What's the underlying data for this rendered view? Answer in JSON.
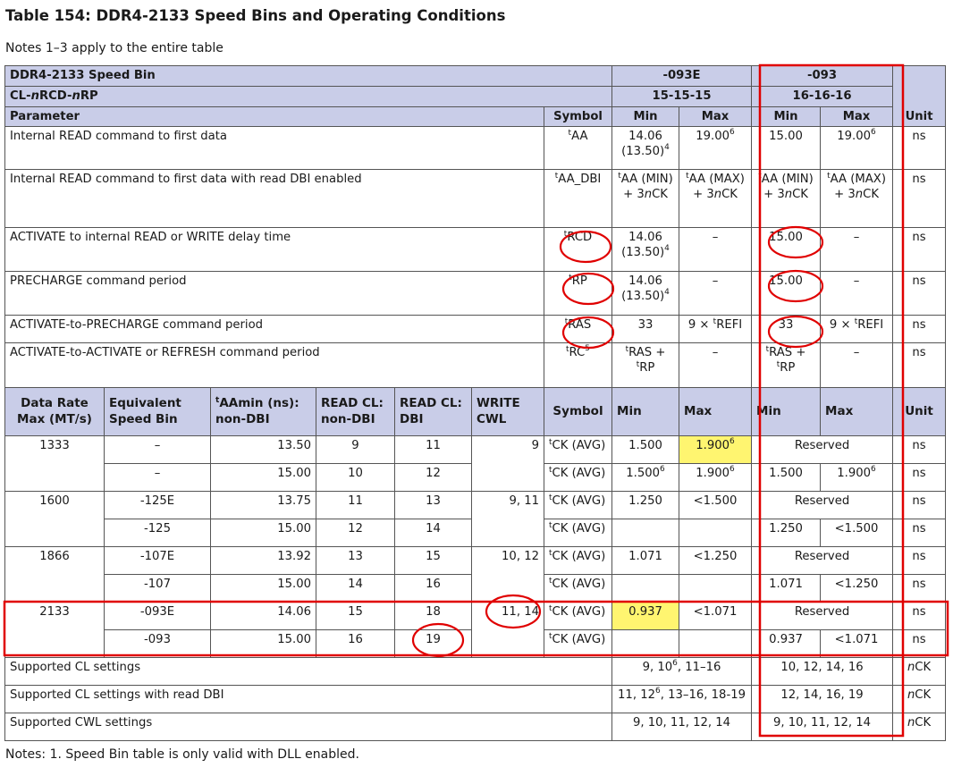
{
  "title": "Table 154: DDR4-2133 Speed Bins and Operating Conditions",
  "notes_intro": "Notes 1–3 apply to the entire table",
  "notes_footer": "Notes: 1.  Speed Bin table is only valid with DLL enabled.",
  "header": {
    "speed_bin": "DDR4-2133 Speed Bin",
    "bin_a": "-093E",
    "bin_b": "-093",
    "cl_label": "CL-nRCD-nRP",
    "cl_a": "15-15-15",
    "cl_b": "16-16-16",
    "parameter": "Parameter",
    "symbol": "Symbol",
    "min": "Min",
    "max": "Max",
    "unit": "Unit"
  },
  "params": [
    {
      "name": "Internal READ command to first data",
      "symbol": "tAA",
      "sup": "",
      "a_min": "14.06",
      "a_min2": "(13.50)",
      "a_min_sup": "4",
      "a_max": "19.00",
      "a_max_sup": "6",
      "b_min": "15.00",
      "b_max": "19.00",
      "b_max_sup": "6",
      "unit": "ns"
    },
    {
      "name": "Internal READ command to first data with read DBI enabled",
      "symbol": "tAA_DBI",
      "sup": "",
      "a_min": "tAA (MIN) + 3nCK",
      "a_max": "tAA (MAX) + 3nCK",
      "b_min": "tAA (MIN) + 3nCK",
      "b_max": "tAA (MAX) + 3nCK",
      "unit": "ns"
    },
    {
      "name": "ACTIVATE to internal READ or WRITE delay time",
      "symbol": "tRCD",
      "sup": "",
      "a_min": "14.06",
      "a_min2": "(13.50)",
      "a_min_sup": "4",
      "a_max": "–",
      "b_min": "15.00",
      "b_max": "–",
      "unit": "ns"
    },
    {
      "name": "PRECHARGE command period",
      "symbol": "tRP",
      "sup": "",
      "a_min": "14.06",
      "a_min2": "(13.50)",
      "a_min_sup": "4",
      "a_max": "–",
      "b_min": "15.00",
      "b_max": "–",
      "unit": "ns"
    },
    {
      "name": "ACTIVATE-to-PRECHARGE command period",
      "symbol": "tRAS",
      "sup": "",
      "a_min": "33",
      "a_max": "9 × tREFI",
      "b_min": "33",
      "b_max": "9 × tREFI",
      "unit": "ns"
    },
    {
      "name": "ACTIVATE-to-ACTIVATE or REFRESH command period",
      "symbol": "tRC",
      "sup": "5",
      "a_min": "tRAS + tRP",
      "a_max": "–",
      "b_min": "tRAS + tRP",
      "b_max": "–",
      "unit": "ns"
    }
  ],
  "sub": {
    "data_rate": "Data Rate Max (MT/s)",
    "equiv": "Equivalent Speed Bin",
    "taamin": "tAAmin (ns): non-DBI",
    "read_cl": "READ CL: non-DBI",
    "read_cl_dbi": "READ CL: DBI",
    "write_cwl": "WRITE CWL",
    "symbol": "Symbol",
    "min": "Min",
    "max": "Max",
    "unit": "Unit"
  },
  "rates": [
    {
      "rate": "1333",
      "cwl": "9",
      "rows": [
        {
          "bin": "–",
          "taa": "13.50",
          "cl": "9",
          "cl_dbi": "11",
          "sym": "tCK (AVG)",
          "a_min": "1.500",
          "a_max": "1.900",
          "a_max_sup": "6",
          "b_reserved": "Reserved",
          "unit": "ns"
        },
        {
          "bin": "–",
          "taa": "15.00",
          "cl": "10",
          "cl_dbi": "12",
          "sym": "tCK (AVG)",
          "a_min": "1.500",
          "a_min_sup": "6",
          "a_max": "1.900",
          "a_max_sup": "6",
          "b_min": "1.500",
          "b_max": "1.900",
          "b_max_sup": "6",
          "unit": "ns"
        }
      ]
    },
    {
      "rate": "1600",
      "cwl": "9, 11",
      "rows": [
        {
          "bin": "-125E",
          "taa": "13.75",
          "cl": "11",
          "cl_dbi": "13",
          "sym": "tCK (AVG)",
          "a_min": "1.250",
          "a_max": "<1.500",
          "b_reserved": "Reserved",
          "unit": "ns"
        },
        {
          "bin": "-125",
          "taa": "15.00",
          "cl": "12",
          "cl_dbi": "14",
          "sym": "tCK (AVG)",
          "b_min": "1.250",
          "b_max": "<1.500",
          "unit": "ns"
        }
      ]
    },
    {
      "rate": "1866",
      "cwl": "10, 12",
      "rows": [
        {
          "bin": "-107E",
          "taa": "13.92",
          "cl": "13",
          "cl_dbi": "15",
          "sym": "tCK (AVG)",
          "a_min": "1.071",
          "a_max": "<1.250",
          "b_reserved": "Reserved",
          "unit": "ns"
        },
        {
          "bin": "-107",
          "taa": "15.00",
          "cl": "14",
          "cl_dbi": "16",
          "sym": "tCK (AVG)",
          "b_min": "1.071",
          "b_max": "<1.250",
          "unit": "ns"
        }
      ]
    },
    {
      "rate": "2133",
      "cwl": "11, 14",
      "rows": [
        {
          "bin": "-093E",
          "taa": "14.06",
          "cl": "15",
          "cl_dbi": "18",
          "sym": "tCK (AVG)",
          "a_min": "0.937",
          "a_max": "<1.071",
          "b_reserved": "Reserved",
          "unit": "ns"
        },
        {
          "bin": "-093",
          "taa": "15.00",
          "cl": "16",
          "cl_dbi": "19",
          "sym": "tCK (AVG)",
          "b_min": "0.937",
          "b_max": "<1.071",
          "unit": "ns"
        }
      ]
    }
  ],
  "supported": [
    {
      "label": "Supported CL settings",
      "a": "9, 10",
      "a_sup": "6",
      "a_rest": ", 11–16",
      "b": "10, 12, 14, 16",
      "unit": "nCK"
    },
    {
      "label": "Supported CL settings with read DBI",
      "a": "11, 12",
      "a_sup": "6",
      "a_rest": ", 13–16, 18-19",
      "b": "12, 14, 16, 19",
      "unit": "nCK"
    },
    {
      "label": "Supported CWL settings",
      "a": "9, 10, 11, 12, 14",
      "a_sup": "",
      "a_rest": "",
      "b": "9, 10, 11, 12, 14",
      "unit": "nCK"
    }
  ],
  "annotation_color": "#e00000",
  "highlight_color": "#fff570"
}
